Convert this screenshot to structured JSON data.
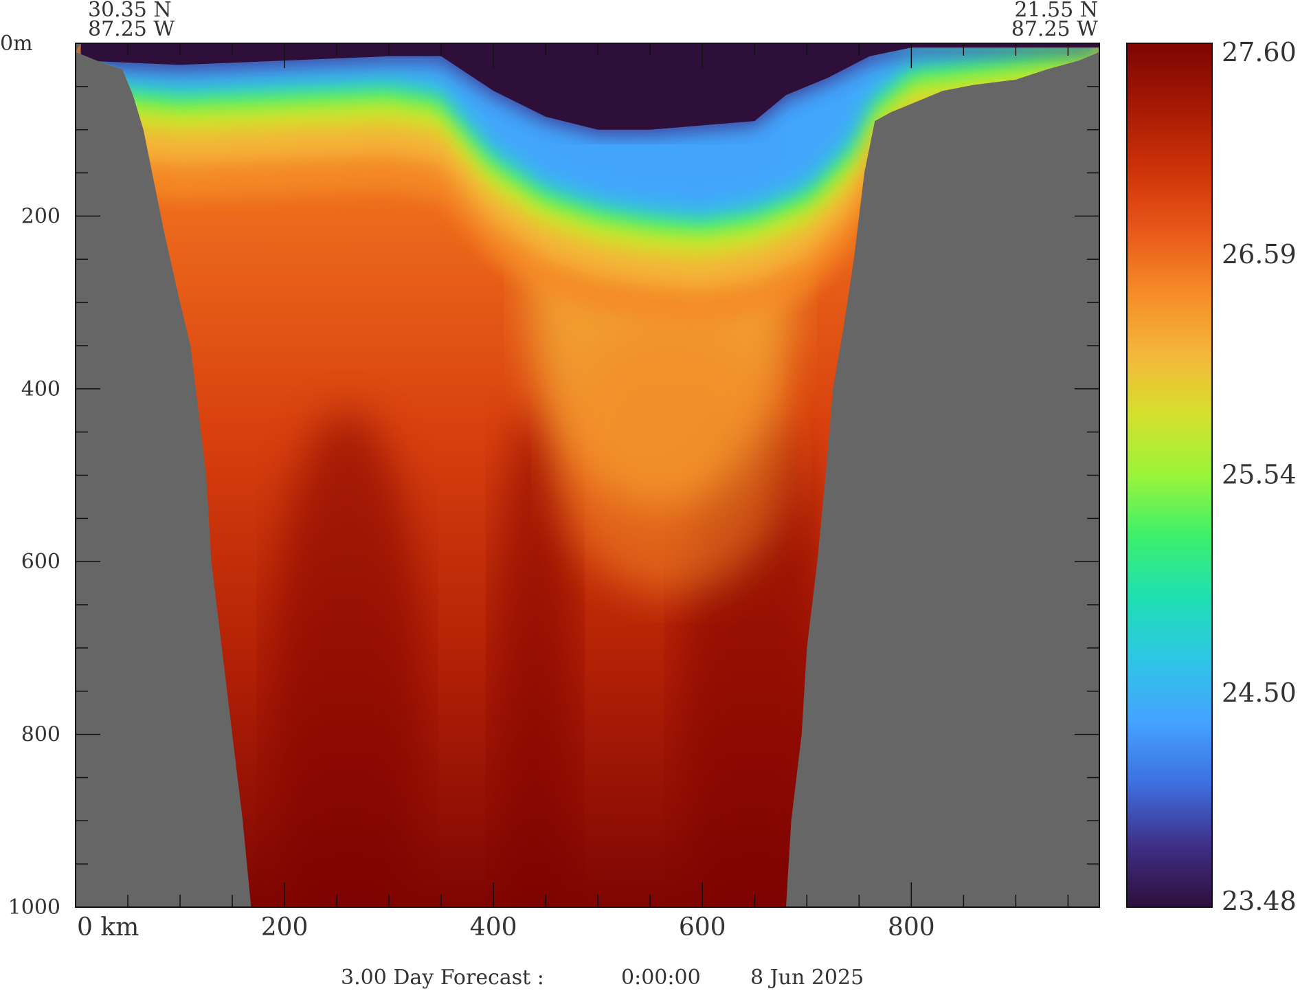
{
  "chart_data": {
    "type": "heatmap",
    "title": "",
    "corner_labels": {
      "start": {
        "lat": "30.35 N",
        "lon": "87.25 W"
      },
      "end": {
        "lat": "21.55 N",
        "lon": "87.25 W"
      }
    },
    "x_axis": {
      "unit_label": "km",
      "range": [
        0,
        980
      ],
      "major_ticks": [
        0,
        200,
        400,
        600,
        800
      ],
      "tick_labels": [
        "0",
        "200",
        "400",
        "600",
        "800"
      ],
      "minor_step": 50
    },
    "y_axis": {
      "unit_label": "m",
      "range": [
        0,
        1000
      ],
      "inverted": true,
      "major_ticks": [
        0,
        200,
        400,
        600,
        800,
        1000
      ],
      "tick_labels": [
        "0",
        "200",
        "400",
        "600",
        "800",
        "1000"
      ],
      "minor_step": 50
    },
    "colorbar": {
      "tick_labels": [
        "27.60",
        "26.59",
        "25.54",
        "24.50",
        "23.48"
      ],
      "min": 23.48,
      "max": 27.6,
      "colors": [
        "#2d0f3a",
        "#3f2f86",
        "#3d6fe0",
        "#45a2ff",
        "#2ec6e6",
        "#1edfb3",
        "#3bf06d",
        "#9af43a",
        "#d6e02c",
        "#f5b53a",
        "#f58a26",
        "#e8561a",
        "#cc3108",
        "#a51804",
        "#7e0503"
      ]
    },
    "section": {
      "top_water_km": [
        5,
        980
      ],
      "left_slope": [
        [
          0,
          10
        ],
        [
          20,
          20
        ],
        [
          45,
          30
        ],
        [
          55,
          60
        ],
        [
          65,
          100
        ],
        [
          75,
          160
        ],
        [
          85,
          220
        ],
        [
          100,
          300
        ],
        [
          110,
          350
        ],
        [
          115,
          400
        ],
        [
          120,
          450
        ],
        [
          125,
          500
        ],
        [
          130,
          600
        ],
        [
          140,
          700
        ],
        [
          150,
          800
        ],
        [
          160,
          900
        ],
        [
          168,
          1000
        ]
      ],
      "right_slope": [
        [
          680,
          1000
        ],
        [
          685,
          900
        ],
        [
          695,
          800
        ],
        [
          700,
          700
        ],
        [
          710,
          600
        ],
        [
          718,
          500
        ],
        [
          725,
          400
        ],
        [
          735,
          330
        ],
        [
          745,
          250
        ],
        [
          755,
          150
        ],
        [
          765,
          90
        ],
        [
          780,
          80
        ],
        [
          800,
          70
        ],
        [
          830,
          55
        ],
        [
          860,
          48
        ],
        [
          900,
          42
        ],
        [
          930,
          30
        ],
        [
          960,
          20
        ],
        [
          980,
          10
        ]
      ],
      "dark_surface_layer_bottom": [
        [
          5,
          20
        ],
        [
          100,
          25
        ],
        [
          200,
          20
        ],
        [
          300,
          15
        ],
        [
          350,
          15
        ],
        [
          400,
          55
        ],
        [
          450,
          85
        ],
        [
          500,
          100
        ],
        [
          550,
          100
        ],
        [
          600,
          95
        ],
        [
          650,
          90
        ],
        [
          680,
          60
        ],
        [
          720,
          40
        ],
        [
          760,
          15
        ],
        [
          800,
          5
        ],
        [
          980,
          5
        ]
      ],
      "green_layer_depth": [
        [
          20,
          60
        ],
        [
          100,
          70
        ],
        [
          200,
          65
        ],
        [
          300,
          60
        ],
        [
          350,
          70
        ],
        [
          400,
          140
        ],
        [
          450,
          180
        ],
        [
          500,
          200
        ],
        [
          550,
          210
        ],
        [
          600,
          215
        ],
        [
          650,
          205
        ],
        [
          700,
          180
        ],
        [
          740,
          130
        ],
        [
          760,
          80
        ],
        [
          800,
          40
        ],
        [
          900,
          25
        ],
        [
          980,
          10
        ]
      ],
      "warm_core_km": [
        260,
        440,
        650
      ]
    },
    "footer": {
      "forecast": "3.00 Day Forecast :",
      "time": "0:00:00",
      "date": "8 Jun 2025"
    }
  }
}
